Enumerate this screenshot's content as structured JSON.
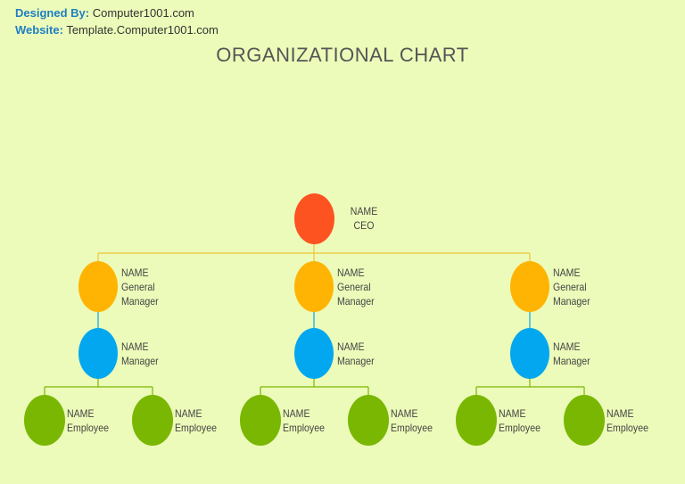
{
  "header": {
    "designed_by_label": "Designed By:",
    "designed_by_value": "Computer1001.com",
    "website_label": "Website:",
    "website_value": "Template.Computer1001.com"
  },
  "title": "ORGANIZATIONAL CHART",
  "colors": {
    "background": "#ecfbb9",
    "ceo": "#fc5320",
    "general_manager": "#ffb404",
    "manager": "#03a7f0",
    "employee": "#7ab702",
    "top_connector": "#f2c335",
    "gm_manager_connector": "#03a7f0",
    "employee_connector": "#7ab702"
  },
  "ceo": {
    "name": "NAME",
    "role": "CEO"
  },
  "branches": [
    {
      "general_manager": {
        "name": "NAME",
        "role_line1": "General",
        "role_line2": "Manager"
      },
      "manager": {
        "name": "NAME",
        "role": "Manager"
      },
      "employees": [
        {
          "name": "NAME",
          "role": "Employee"
        },
        {
          "name": "NAME",
          "role": "Employee"
        }
      ]
    },
    {
      "general_manager": {
        "name": "NAME",
        "role_line1": "General",
        "role_line2": "Manager"
      },
      "manager": {
        "name": "NAME",
        "role": "Manager"
      },
      "employees": [
        {
          "name": "NAME",
          "role": "Employee"
        },
        {
          "name": "NAME",
          "role": "Employee"
        }
      ]
    },
    {
      "general_manager": {
        "name": "NAME",
        "role_line1": "General",
        "role_line2": "Manager"
      },
      "manager": {
        "name": "NAME",
        "role": "Manager"
      },
      "employees": [
        {
          "name": "NAME",
          "role": "Employee"
        },
        {
          "name": "NAME",
          "role": "Employee"
        }
      ]
    }
  ]
}
